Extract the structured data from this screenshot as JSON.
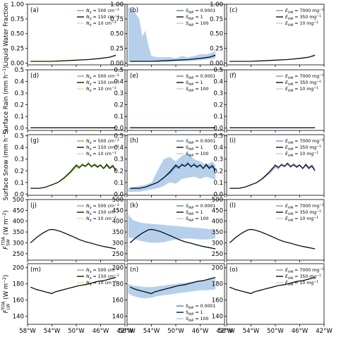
{
  "chart_data": {
    "type": "line",
    "x_tick_labels": [
      "58°W",
      "54°W",
      "50°W",
      "46°W",
      "42°W"
    ],
    "x_ticks": [
      -58,
      -54,
      -50,
      -46,
      -42
    ],
    "xlim": [
      -58,
      -42
    ],
    "columns": [
      {
        "legend": [
          "N_d = 500 cm^-3",
          "N_d = 150 cm^-3",
          "N_d = 10 cm^-3"
        ],
        "legend_parts": [
          {
            "sym": "N",
            "sub": "d",
            "eq": " = 500 cm",
            "sup": "−3"
          },
          {
            "sym": "N",
            "sub": "d",
            "eq": " = 150 cm",
            "sup": "−3"
          },
          {
            "sym": "N",
            "sub": "d",
            "eq": " = 10 cm",
            "sup": "−3"
          }
        ],
        "colors": [
          "#66bb44",
          "#000000",
          "#d9e27a"
        ]
      },
      {
        "legend": [
          "S_INP = 0.0001",
          "S_INP = 1",
          "S_INP = 100"
        ],
        "legend_parts": [
          {
            "sym": "S",
            "sub": "INP",
            "eq": " = 0.0001",
            "sup": ""
          },
          {
            "sym": "S",
            "sub": "INP",
            "eq": " = 1",
            "sup": ""
          },
          {
            "sym": "S",
            "sub": "INP",
            "eq": " = 100",
            "sup": ""
          }
        ],
        "colors": [
          "#3a78b8",
          "#000000",
          "#a9c8e8"
        ]
      },
      {
        "legend": [
          "E_HM = 7000 mg^-1",
          "E_HM = 350 mg^-1",
          "E_HM = 10 mg^-1"
        ],
        "legend_parts": [
          {
            "sym": "E",
            "sub": "HM",
            "eq": " = 7000 mg",
            "sup": "−1"
          },
          {
            "sym": "E",
            "sub": "HM",
            "eq": " = 350 mg",
            "sup": "−1"
          },
          {
            "sym": "E",
            "sub": "HM",
            "eq": " = 10 mg",
            "sup": "−1"
          }
        ],
        "colors": [
          "#8f7fc8",
          "#000000",
          "#c8c0e4"
        ]
      }
    ],
    "rows": [
      {
        "ylabel": "Liquid Water Fraction",
        "ylim": [
          -0.03,
          1.0
        ],
        "yticks": [
          0.0,
          0.25,
          0.5,
          0.75,
          1.0
        ],
        "ytick_labels": [
          "0.00",
          "0.25",
          "0.50",
          "0.75",
          "1.00"
        ],
        "panels": [
          "(a)",
          "(b)",
          "(c)"
        ],
        "x": [
          -57.5,
          -56,
          -54,
          -52,
          -50,
          -48,
          -46,
          -44.5,
          -43.5
        ],
        "series": [
          [
            0.03,
            0.03,
            0.03,
            0.04,
            0.05,
            0.06,
            0.08,
            0.1,
            0.14
          ],
          [
            0.03,
            0.03,
            0.03,
            0.04,
            0.05,
            0.06,
            0.08,
            0.1,
            0.13
          ],
          [
            0.03,
            0.03,
            0.03,
            0.04,
            0.05,
            0.06,
            0.08,
            0.1,
            0.13
          ]
        ],
        "band_x": [
          -57.8,
          -57,
          -56,
          -55.5,
          -55,
          -54.5,
          -54,
          -53,
          -52,
          -51,
          -50,
          -49,
          -48,
          -47,
          -46,
          -45,
          -44,
          -43.5
        ],
        "band_high": [
          0.95,
          0.9,
          0.75,
          0.45,
          0.55,
          0.3,
          0.12,
          0.1,
          0.1,
          0.1,
          0.08,
          0.12,
          0.1,
          0.12,
          0.15,
          0.15,
          0.18,
          0.2
        ],
        "band_low": [
          0.02,
          0.02,
          0.02,
          0.02,
          0.02,
          0.02,
          0.02,
          0.02,
          0.02,
          0.02,
          0.03,
          0.03,
          0.03,
          0.04,
          0.05,
          0.06,
          0.07,
          0.08
        ]
      },
      {
        "ylabel": "Surface Rain (mm h^-1)",
        "ylabel_parts": {
          "base": "Surface Rain (mm h",
          "sup": "−1",
          "tail": ")"
        },
        "ylim": [
          -0.02,
          0.5
        ],
        "yticks": [
          0.0,
          0.1,
          0.2,
          0.3,
          0.4,
          0.5
        ],
        "ytick_labels": [
          "0.0",
          "0.1",
          "0.2",
          "0.3",
          "0.4",
          "0.5"
        ],
        "panels": [
          "(d)",
          "(e)",
          "(f)"
        ],
        "x": [
          -57.5,
          -54,
          -50,
          -46,
          -43.5
        ],
        "series": [
          [
            0.003,
            0.003,
            0.003,
            0.003,
            0.003
          ],
          [
            0.003,
            0.003,
            0.003,
            0.003,
            0.003
          ],
          [
            0.003,
            0.003,
            0.003,
            0.003,
            0.003
          ]
        ],
        "band_x": [
          -57.8,
          -54,
          -50,
          -46,
          -43.5
        ],
        "band_high": [
          0.006,
          0.006,
          0.006,
          0.006,
          0.006
        ],
        "band_low": [
          0.0,
          0.0,
          0.0,
          0.0,
          0.0
        ]
      },
      {
        "ylabel": "Surface Snow (mm h^-1)",
        "ylabel_parts": {
          "base": "Surface Snow (mm h",
          "sup": "−1",
          "tail": ")"
        },
        "ylim": [
          -0.01,
          0.51
        ],
        "yticks": [
          0.0,
          0.1,
          0.2,
          0.3,
          0.4,
          0.5
        ],
        "ytick_labels": [
          "0.0",
          "0.1",
          "0.2",
          "0.3",
          "0.4",
          "0.5"
        ],
        "panels": [
          "(g)",
          "(h)",
          "(i)"
        ],
        "x": [
          -57.5,
          -56,
          -55,
          -54,
          -53,
          -52,
          -51,
          -50,
          -49.5,
          -49,
          -48.5,
          -48,
          -47.5,
          -47,
          -46.5,
          -46,
          -45.5,
          -45,
          -44.5,
          -44,
          -43.5
        ],
        "series": [
          [
            0.05,
            0.05,
            0.06,
            0.08,
            0.1,
            0.14,
            0.18,
            0.24,
            0.22,
            0.26,
            0.24,
            0.27,
            0.23,
            0.26,
            0.24,
            0.25,
            0.22,
            0.26,
            0.23,
            0.25,
            0.21
          ],
          [
            0.05,
            0.05,
            0.06,
            0.08,
            0.1,
            0.14,
            0.19,
            0.25,
            0.23,
            0.25,
            0.24,
            0.26,
            0.24,
            0.25,
            0.23,
            0.25,
            0.22,
            0.25,
            0.22,
            0.24,
            0.2
          ],
          [
            0.05,
            0.05,
            0.06,
            0.08,
            0.1,
            0.13,
            0.18,
            0.23,
            0.22,
            0.25,
            0.23,
            0.26,
            0.23,
            0.25,
            0.24,
            0.24,
            0.22,
            0.25,
            0.22,
            0.24,
            0.21
          ]
        ],
        "band_x": [
          -57.8,
          -57,
          -56,
          -55,
          -54,
          -53,
          -52,
          -51,
          -50,
          -49,
          -48,
          -47,
          -46,
          -45,
          -44,
          -43.5
        ],
        "band_high": [
          0.05,
          0.06,
          0.07,
          0.08,
          0.1,
          0.2,
          0.3,
          0.32,
          0.28,
          0.33,
          0.35,
          0.3,
          0.28,
          0.25,
          0.28,
          0.25
        ],
        "band_low": [
          0.02,
          0.02,
          0.02,
          0.03,
          0.04,
          0.05,
          0.07,
          0.1,
          0.09,
          0.13,
          0.14,
          0.15,
          0.13,
          0.15,
          0.13,
          0.12
        ]
      },
      {
        "ylabel": "F_SW^TOA (W m^-2)",
        "ylabel_parts": {
          "base": "F",
          "sub": "SW",
          "sup_sym": "TOA",
          "tail": " (W m",
          "sup": "−2",
          "close": ")"
        },
        "ylim": [
          220,
          500
        ],
        "yticks": [
          250,
          300,
          350,
          400,
          450,
          500
        ],
        "ytick_labels": [
          "250",
          "300",
          "350",
          "400",
          "450",
          "500"
        ],
        "panels": [
          "(j)",
          "(k)",
          "(l)"
        ],
        "x": [
          -57.5,
          -56.5,
          -55.5,
          -54.5,
          -54,
          -53.5,
          -52.5,
          -51.5,
          -50.5,
          -49.5,
          -48.5,
          -47.5,
          -46.5,
          -45.5,
          -44.5,
          -43.5
        ],
        "series": [
          [
            300,
            325,
            345,
            360,
            362,
            360,
            352,
            340,
            328,
            315,
            305,
            298,
            290,
            283,
            278,
            272
          ],
          [
            300,
            325,
            345,
            360,
            362,
            360,
            352,
            340,
            328,
            315,
            305,
            298,
            290,
            283,
            278,
            272
          ],
          [
            300,
            325,
            345,
            360,
            362,
            360,
            352,
            340,
            328,
            315,
            305,
            298,
            290,
            283,
            278,
            272
          ]
        ],
        "band_x": [
          -57.8,
          -57,
          -56,
          -55,
          -54,
          -53,
          -52,
          -51,
          -50,
          -49,
          -48,
          -47,
          -46,
          -45,
          -44,
          -43.5
        ],
        "band_high": [
          430,
          405,
          395,
          390,
          388,
          385,
          383,
          380,
          378,
          375,
          372,
          370,
          368,
          365,
          362,
          360
        ],
        "band_low": [
          325,
          320,
          310,
          305,
          300,
          300,
          302,
          310,
          315,
          318,
          320,
          318,
          315,
          315,
          318,
          320
        ]
      },
      {
        "ylabel": "F_LW^TOA (W m^-2)",
        "ylabel_parts": {
          "base": "F",
          "sub": "LW",
          "sup_sym": "TOA",
          "tail": " (W m",
          "sup": "−2",
          "close": ")"
        },
        "ylim": [
          130,
          205
        ],
        "yticks": [
          140,
          160,
          180,
          200
        ],
        "ytick_labels": [
          "140",
          "160",
          "180",
          "200"
        ],
        "panels": [
          "(m)",
          "(n)",
          "(o)"
        ],
        "x": [
          -57.5,
          -56.5,
          -55.5,
          -54.5,
          -54,
          -53.5,
          -52.5,
          -51.5,
          -50.5,
          -49.5,
          -48.5,
          -47.5,
          -46.5,
          -45.5,
          -44.5,
          -43.5
        ],
        "series": [
          [
            176,
            173,
            171,
            169,
            168,
            170,
            172,
            174,
            176,
            178,
            179,
            181,
            183,
            184,
            186,
            188
          ],
          [
            176,
            173,
            171,
            169,
            168,
            170,
            172,
            174,
            176,
            178,
            179,
            181,
            183,
            184,
            186,
            188
          ],
          [
            176,
            173,
            171,
            169,
            168,
            170,
            172,
            174,
            176,
            178,
            179,
            181,
            183,
            184,
            186,
            188
          ]
        ],
        "band_x": [
          -57.8,
          -57,
          -56,
          -55,
          -54,
          -53,
          -52,
          -51,
          -50,
          -49,
          -48,
          -47,
          -46,
          -45,
          -44,
          -43.5
        ],
        "band_high": [
          180,
          178,
          177,
          176,
          176,
          177,
          178,
          179,
          180,
          181,
          182,
          183,
          184,
          185,
          186,
          187
        ],
        "band_low": [
          168,
          165,
          163,
          162,
          163,
          165,
          166,
          167,
          168,
          169,
          170,
          171,
          172,
          172,
          173,
          173
        ]
      }
    ]
  }
}
